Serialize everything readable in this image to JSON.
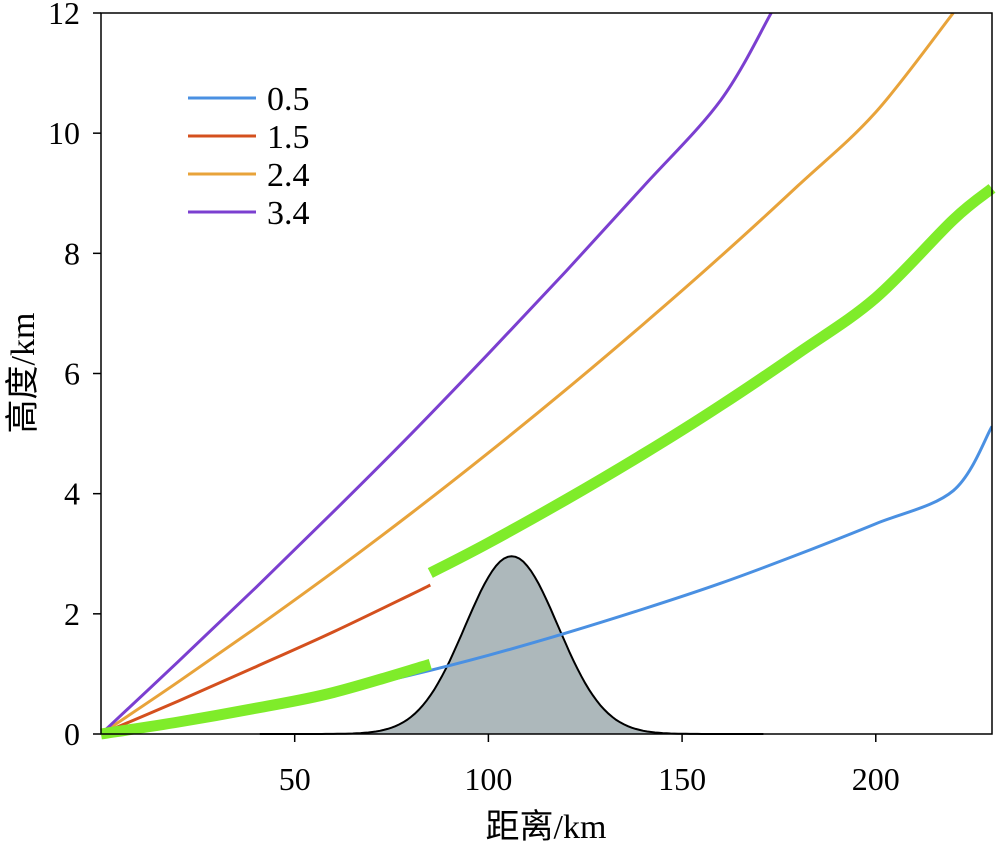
{
  "chart_data": {
    "type": "line",
    "xlabel": "距离/km",
    "ylabel": "高度/km",
    "xlim": [
      0,
      230
    ],
    "ylim": [
      0,
      12
    ],
    "xticks": [
      50,
      100,
      150,
      200
    ],
    "yticks": [
      0,
      2,
      4,
      6,
      8,
      10,
      12
    ],
    "grid": false,
    "legend_position": "top-left",
    "series": [
      {
        "name": "0.5",
        "color": "#4a90e2",
        "x": [
          0,
          20,
          40,
          60,
          80,
          100,
          120,
          140,
          160,
          180,
          200,
          220,
          230
        ],
        "y": [
          0,
          0.2,
          0.43,
          0.69,
          0.98,
          1.31,
          1.68,
          2.08,
          2.51,
          2.99,
          3.5,
          4.05,
          5.12
        ]
      },
      {
        "name": "1.5",
        "color": "#d4501e",
        "x": [
          0,
          20,
          40,
          60,
          80,
          85
        ],
        "y": [
          0,
          0.55,
          1.12,
          1.7,
          2.32,
          2.48
        ]
      },
      {
        "name": "2.4",
        "color": "#e8a33a",
        "x": [
          0,
          20,
          40,
          60,
          80,
          100,
          120,
          140,
          160,
          180,
          200,
          220
        ],
        "y": [
          0,
          0.87,
          1.77,
          2.7,
          3.67,
          4.68,
          5.73,
          6.82,
          7.95,
          9.13,
          10.35,
          12.0
        ]
      },
      {
        "name": "3.4",
        "color": "#7b3fd0",
        "x": [
          0,
          20,
          40,
          60,
          80,
          100,
          120,
          140,
          160,
          173
        ],
        "y": [
          0,
          1.21,
          2.44,
          3.7,
          4.99,
          6.33,
          7.7,
          9.11,
          10.55,
          12.0
        ]
      }
    ],
    "highlight_paths": [
      {
        "color": "#7fec2a",
        "x": [
          0,
          20,
          40,
          60,
          85
        ],
        "y": [
          0,
          0.2,
          0.43,
          0.69,
          1.16
        ]
      },
      {
        "color": "#7fec2a",
        "x": [
          85,
          100,
          120,
          140,
          160,
          180,
          200,
          220,
          230
        ],
        "y": [
          2.68,
          3.18,
          3.9,
          4.66,
          5.47,
          6.34,
          7.26,
          8.56,
          9.08
        ]
      }
    ],
    "terrain": {
      "color": "#adb8bb",
      "center": 106,
      "peak": 2.96,
      "sigma": 12,
      "x_range": [
        41,
        171
      ]
    }
  }
}
